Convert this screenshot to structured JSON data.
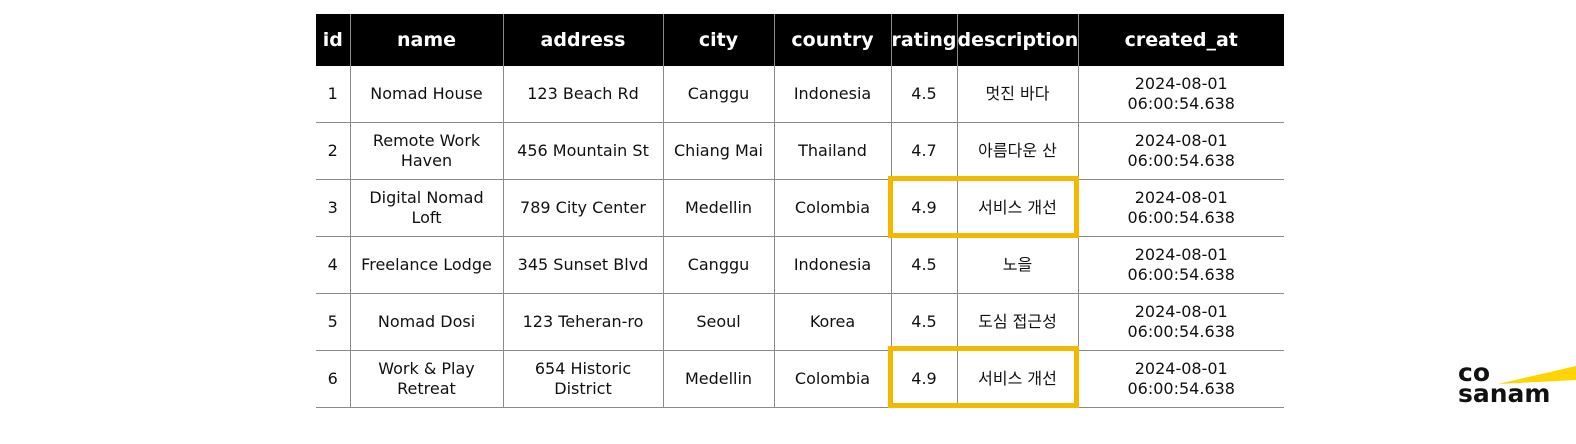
{
  "table": {
    "headers": [
      "id",
      "name",
      "address",
      "city",
      "country",
      "rating",
      "description",
      "created_at"
    ],
    "rows": [
      [
        "1",
        "Nomad House",
        "123 Beach Rd",
        "Canggu",
        "Indonesia",
        "4.5",
        "멋진 바다",
        "2024-08-01 06:00:54.638"
      ],
      [
        "2",
        "Remote Work Haven",
        "456 Mountain St",
        "Chiang Mai",
        "Thailand",
        "4.7",
        "아름다운 산",
        "2024-08-01 06:00:54.638"
      ],
      [
        "3",
        "Digital Nomad Loft",
        "789 City Center",
        "Medellin",
        "Colombia",
        "4.9",
        "서비스 개선",
        "2024-08-01 06:00:54.638"
      ],
      [
        "4",
        "Freelance Lodge",
        "345 Sunset Blvd",
        "Canggu",
        "Indonesia",
        "4.5",
        "노을",
        "2024-08-01 06:00:54.638"
      ],
      [
        "5",
        "Nomad Dosi",
        "123 Teheran-ro",
        "Seoul",
        "Korea",
        "4.5",
        "도심 접근성",
        "2024-08-01 06:00:54.638"
      ],
      [
        "6",
        "Work & Play Retreat",
        "654 Historic District",
        "Medellin",
        "Colombia",
        "4.9",
        "서비스 개선",
        "2024-08-01 06:00:54.638"
      ]
    ],
    "highlighted_rows": [
      3,
      6
    ],
    "highlighted_columns": [
      "rating",
      "description"
    ],
    "highlight_color": "#f5b800",
    "header_bg": "#000000",
    "header_fg": "#ffffff"
  },
  "logo": {
    "line1": "co",
    "line2": "sanam",
    "accent_color": "#ffd400"
  }
}
